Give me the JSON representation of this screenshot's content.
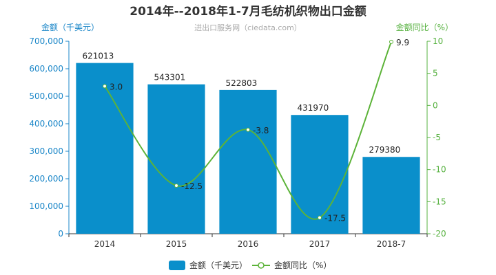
{
  "chart_data": {
    "type": "bar",
    "title": "2014年--2018年1-7月毛纺机织物出口金额",
    "subtitle": "进出口服务网（ciedata.com）",
    "categories": [
      "2014",
      "2015",
      "2016",
      "2017",
      "2018-7"
    ],
    "series": [
      {
        "name": "金额（千美元）",
        "type": "bar",
        "axis": "left",
        "values": [
          621013,
          543301,
          522803,
          431970,
          279380
        ],
        "color": "#0a8fcb"
      },
      {
        "name": "金额同比（%）",
        "type": "line",
        "axis": "right",
        "values": [
          3.0,
          -12.5,
          -3.8,
          -17.5,
          9.9
        ],
        "color": "#5cb338"
      }
    ],
    "ylabel": "金额（千美元）",
    "ylabel_right": "金额同比（%）",
    "ylim": [
      0,
      700000
    ],
    "yticks": [
      "0",
      "100,000",
      "200,000",
      "300,000",
      "400,000",
      "500,000",
      "600,000",
      "700,000"
    ],
    "ylim_right": [
      -20,
      10
    ],
    "yticks_right": [
      "-20",
      "-15",
      "-10",
      "-5",
      "0",
      "5",
      "10"
    ],
    "grid": false,
    "legend_position": "bottom-center"
  }
}
